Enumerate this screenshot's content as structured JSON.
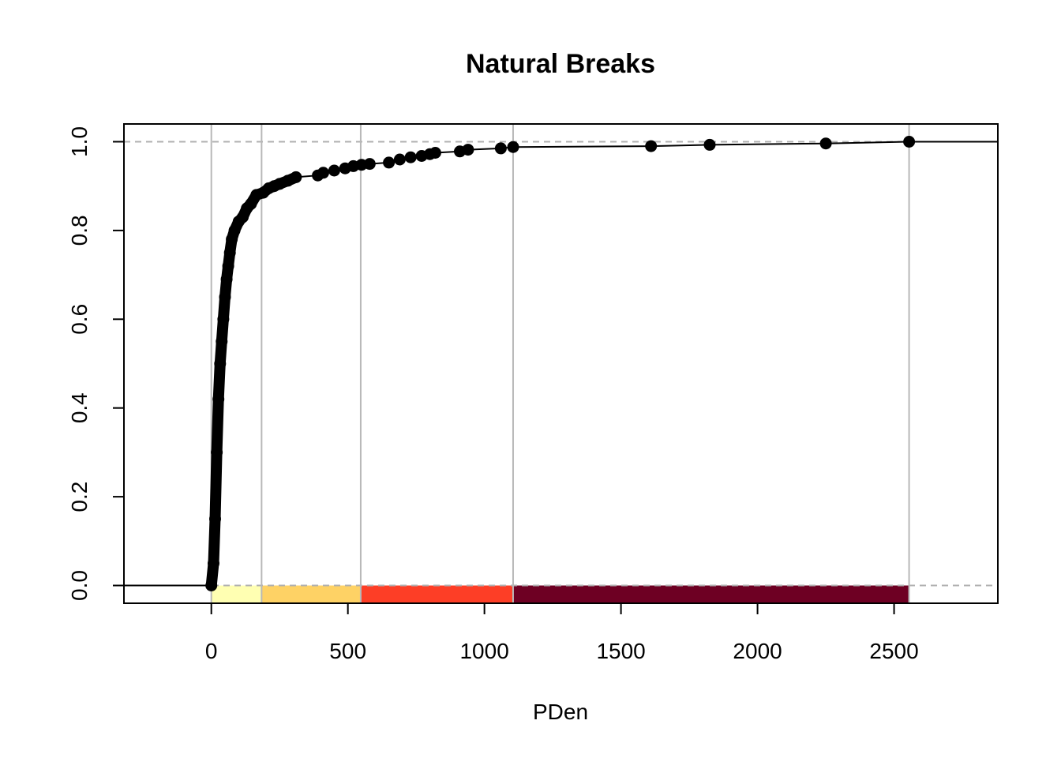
{
  "chart_data": {
    "type": "line",
    "title": "Natural Breaks",
    "xlabel": "PDen",
    "ylabel": "",
    "xlim": [
      -320,
      2880
    ],
    "ylim": [
      -0.04,
      1.04
    ],
    "xticks": [
      0,
      500,
      1000,
      1500,
      2000,
      2500
    ],
    "xtick_labels": [
      "0",
      "500",
      "1000",
      "1500",
      "2000",
      "2500"
    ],
    "yticks": [
      0.0,
      0.2,
      0.4,
      0.6,
      0.8,
      1.0
    ],
    "ytick_labels": [
      "0.0",
      "0.2",
      "0.4",
      "0.6",
      "0.8",
      "1.0"
    ],
    "breaks": [
      0,
      184,
      547,
      1105,
      2555
    ],
    "class_colors": [
      "#FFFFB2",
      "#FED265",
      "#FD3E26",
      "#6E0023"
    ],
    "reference_lines_y": [
      0,
      1
    ],
    "series": [
      {
        "values": [
          [
            0,
            0.0
          ],
          [
            8,
            0.05
          ],
          [
            14,
            0.15
          ],
          [
            20,
            0.3
          ],
          [
            26,
            0.42
          ],
          [
            32,
            0.5
          ],
          [
            38,
            0.55
          ],
          [
            44,
            0.6
          ],
          [
            50,
            0.65
          ],
          [
            56,
            0.69
          ],
          [
            62,
            0.72
          ],
          [
            68,
            0.75
          ],
          [
            75,
            0.78
          ],
          [
            85,
            0.8
          ],
          [
            100,
            0.82
          ],
          [
            115,
            0.83
          ],
          [
            130,
            0.85
          ],
          [
            145,
            0.86
          ],
          [
            165,
            0.88
          ],
          [
            190,
            0.885
          ],
          [
            210,
            0.895
          ],
          [
            230,
            0.9
          ],
          [
            250,
            0.905
          ],
          [
            280,
            0.912
          ],
          [
            310,
            0.92
          ],
          [
            390,
            0.924
          ],
          [
            410,
            0.93
          ],
          [
            450,
            0.935
          ],
          [
            490,
            0.94
          ],
          [
            520,
            0.945
          ],
          [
            550,
            0.948
          ],
          [
            580,
            0.95
          ],
          [
            650,
            0.953
          ],
          [
            690,
            0.96
          ],
          [
            730,
            0.965
          ],
          [
            770,
            0.968
          ],
          [
            800,
            0.972
          ],
          [
            820,
            0.975
          ],
          [
            910,
            0.978
          ],
          [
            940,
            0.982
          ],
          [
            1060,
            0.985
          ],
          [
            1105,
            0.988
          ],
          [
            1610,
            0.99
          ],
          [
            1825,
            0.993
          ],
          [
            2250,
            0.996
          ],
          [
            2555,
            1.0
          ]
        ]
      }
    ]
  }
}
